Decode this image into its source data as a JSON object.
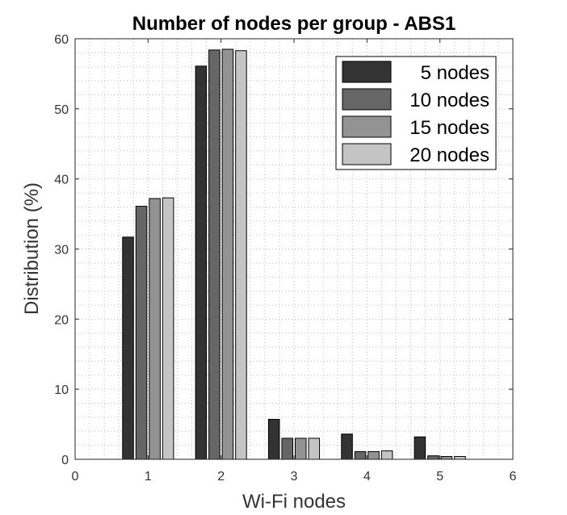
{
  "chart_data": {
    "type": "bar",
    "title": "Number of nodes per group - ABS1",
    "xlabel": "Wi-Fi nodes",
    "ylabel": "Distribution (%)",
    "xlim": [
      0,
      6
    ],
    "ylim": [
      0,
      60
    ],
    "xticks": [
      "0",
      "1",
      "2",
      "3",
      "4",
      "5",
      "6"
    ],
    "yticks": [
      "0",
      "10",
      "20",
      "30",
      "40",
      "50",
      "60"
    ],
    "categories": [
      1,
      2,
      3,
      4,
      5
    ],
    "grid": true,
    "legend_position": "top-right",
    "series": [
      {
        "name": "5 nodes",
        "color": "#333333",
        "values": [
          31.7,
          56.1,
          5.7,
          3.6,
          3.2
        ]
      },
      {
        "name": "10 nodes",
        "color": "#666666",
        "values": [
          36.1,
          58.4,
          3.0,
          1.1,
          0.5
        ]
      },
      {
        "name": "15 nodes",
        "color": "#939393",
        "values": [
          37.2,
          58.5,
          3.0,
          1.1,
          0.4
        ]
      },
      {
        "name": "20 nodes",
        "color": "#c4c4c4",
        "values": [
          37.3,
          58.3,
          3.0,
          1.2,
          0.4
        ]
      }
    ]
  }
}
